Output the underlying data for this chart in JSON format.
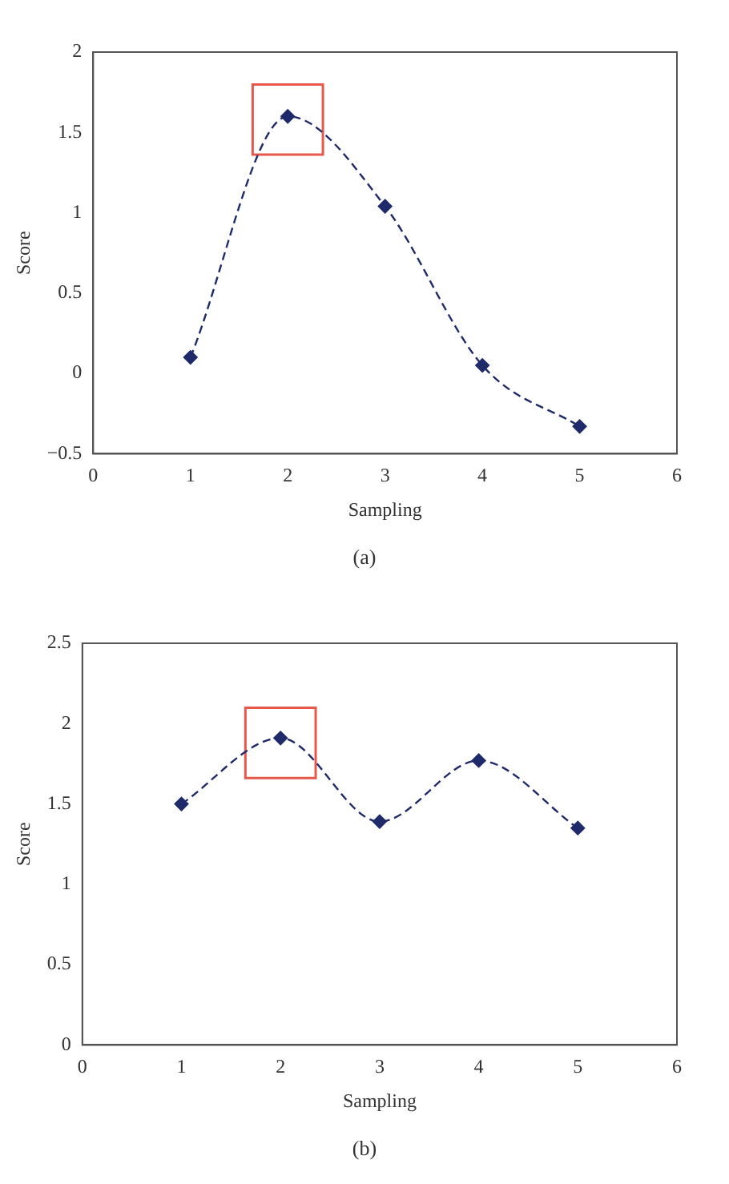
{
  "chart_data": [
    {
      "type": "line",
      "xlabel": "Sampling",
      "ylabel": "Score",
      "x": [
        1,
        2,
        3,
        4,
        5
      ],
      "series": [
        {
          "color": "#1f2a6b",
          "values": [
            0.1,
            1.6,
            1.04,
            0.05,
            -0.33
          ]
        },
        {
          "type": "scatter",
          "marker": "square",
          "color": "#e8584a",
          "values": [
            null,
            1.58,
            null,
            null,
            null
          ]
        }
      ],
      "xlim": [
        0,
        6
      ],
      "xticks": [
        0,
        1,
        2,
        3,
        4,
        5,
        6
      ],
      "ylim": [
        -0.5,
        2
      ],
      "yticks": [
        {
          "value": -0.5,
          "label": "−0.5"
        },
        0,
        0.5,
        1,
        1.5,
        2
      ],
      "grid": false,
      "marker": "diamond",
      "line_style": "dashed",
      "annotations": [
        "(a)"
      ]
    },
    {
      "type": "line",
      "xlabel": "Sampling",
      "ylabel": "Score",
      "x": [
        1,
        2,
        3,
        4,
        5
      ],
      "series": [
        {
          "color": "#1f2a6b",
          "values": [
            1.5,
            1.91,
            1.39,
            1.77,
            1.35
          ]
        },
        {
          "type": "scatter",
          "marker": "square",
          "color": "#e8584a",
          "values": [
            null,
            1.88,
            null,
            null,
            null
          ]
        }
      ],
      "xlim": [
        0,
        6
      ],
      "xticks": [
        0,
        1,
        2,
        3,
        4,
        5,
        6
      ],
      "ylim": [
        0,
        2.5
      ],
      "yticks": [
        0,
        0.5,
        1,
        1.5,
        2,
        2.5
      ],
      "grid": false,
      "marker": "diamond",
      "line_style": "dashed",
      "annotations": [
        "(b)"
      ]
    }
  ]
}
